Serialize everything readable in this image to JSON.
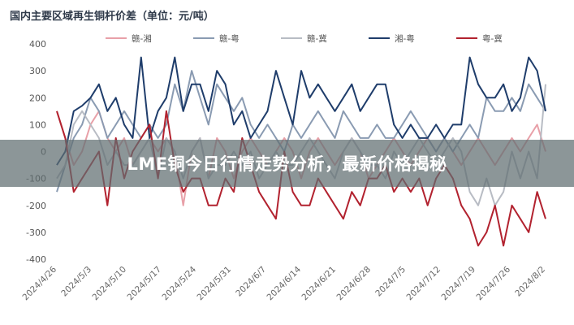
{
  "banner": {
    "headline": "LME铜今日行情走势分析，最新价格揭秘"
  },
  "chart_data": {
    "type": "line",
    "title": "国内主要区域再生铜杆价差（单位：元/吨）",
    "ylim": [
      -400,
      400
    ],
    "yticks": [
      -400,
      -300,
      -200,
      -100,
      0,
      100,
      200,
      300,
      400
    ],
    "grid": false,
    "legend_position": "top",
    "x_tick_labels": [
      "2024/4/26",
      "2024/5/3",
      "2024/5/10",
      "2024/5/17",
      "2024/5/24",
      "2024/5/31",
      "2024/6/7",
      "2024/6/14",
      "2024/6/21",
      "2024/6/28",
      "2024/7/5",
      "2024/7/12",
      "2024/7/19",
      "2024/7/26",
      "2024/8/2"
    ],
    "n_points": 59,
    "series": [
      {
        "name": "赣-湘",
        "color": "#e8a0a8",
        "values": [
          150,
          50,
          -50,
          0,
          100,
          150,
          50,
          0,
          50,
          -50,
          0,
          50,
          0,
          50,
          0,
          -200,
          0,
          50,
          -100,
          50,
          0,
          -100,
          0,
          50,
          0,
          -50,
          0,
          50,
          0,
          -100,
          0,
          50,
          0,
          -50,
          0,
          50,
          0,
          -100,
          -50,
          0,
          50,
          0,
          -50,
          0,
          50,
          0,
          50,
          0,
          -50,
          0,
          50,
          0,
          -50,
          0,
          50,
          0,
          50,
          100,
          0
        ]
      },
      {
        "name": "赣-粤",
        "color": "#8a9bb2",
        "values": [
          -150,
          -50,
          50,
          100,
          200,
          150,
          50,
          100,
          150,
          100,
          50,
          100,
          50,
          100,
          250,
          150,
          300,
          200,
          100,
          250,
          200,
          150,
          200,
          100,
          50,
          100,
          50,
          0,
          100,
          50,
          100,
          150,
          100,
          50,
          150,
          100,
          50,
          50,
          100,
          50,
          50,
          100,
          150,
          100,
          50,
          0,
          50,
          0,
          50,
          100,
          50,
          200,
          150,
          150,
          200,
          150,
          250,
          200,
          150
        ]
      },
      {
        "name": "赣-冀",
        "color": "#b8bcc4",
        "values": [
          -100,
          -50,
          100,
          150,
          100,
          50,
          -50,
          0,
          -50,
          -50,
          0,
          50,
          -100,
          50,
          0,
          -100,
          0,
          50,
          -100,
          -50,
          -50,
          0,
          -50,
          0,
          -100,
          -50,
          0,
          -50,
          -50,
          0,
          50,
          0,
          -50,
          -100,
          0,
          50,
          0,
          -50,
          -50,
          -100,
          0,
          -50,
          0,
          50,
          0,
          -50,
          0,
          50,
          0,
          -150,
          -200,
          -100,
          -200,
          -150,
          0,
          -100,
          0,
          -100,
          250
        ]
      },
      {
        "name": "湘-粤",
        "color": "#1f3d6b",
        "values": [
          -50,
          0,
          150,
          170,
          200,
          250,
          150,
          200,
          100,
          50,
          350,
          50,
          150,
          200,
          350,
          150,
          250,
          250,
          150,
          300,
          250,
          100,
          150,
          50,
          100,
          150,
          300,
          200,
          100,
          300,
          200,
          250,
          200,
          150,
          200,
          250,
          150,
          200,
          250,
          250,
          100,
          50,
          100,
          50,
          50,
          100,
          50,
          100,
          100,
          350,
          250,
          200,
          200,
          250,
          150,
          200,
          350,
          300,
          150
        ]
      },
      {
        "name": "粤-冀",
        "color": "#b2222f",
        "values": [
          150,
          50,
          -150,
          -100,
          -50,
          0,
          -200,
          50,
          -100,
          0,
          50,
          100,
          -100,
          150,
          -50,
          -150,
          -100,
          -100,
          -200,
          -200,
          -100,
          -150,
          50,
          -50,
          -150,
          -200,
          -250,
          0,
          -150,
          -200,
          -200,
          -100,
          -150,
          -200,
          -250,
          -150,
          -200,
          -100,
          -100,
          -50,
          -150,
          -100,
          -150,
          -100,
          -200,
          -100,
          -50,
          -100,
          -200,
          -250,
          -350,
          -300,
          -200,
          -350,
          -200,
          -250,
          -300,
          -150,
          -250
        ]
      }
    ]
  }
}
